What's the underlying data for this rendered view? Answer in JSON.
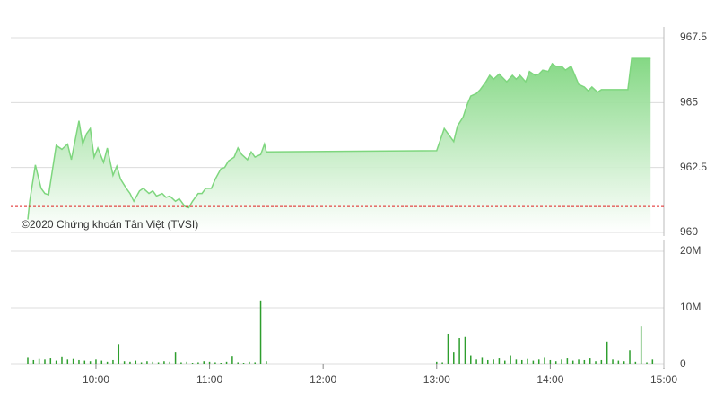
{
  "chart_data": [
    {
      "type": "area",
      "color": "#7ed67e",
      "reference": 961,
      "reference_color": "#e02020",
      "annotation": "©2020 Chứng khoán Tân Việt (TVSI)",
      "xlim": [
        "9:15",
        "15:00"
      ],
      "x": [
        "9:24",
        "9:25",
        "9:28",
        "9:31",
        "9:33",
        "9:35",
        "9:39",
        "9:42",
        "9:45",
        "9:47",
        "9:51",
        "9:53",
        "9:55",
        "9:57",
        "9:59",
        "10:01",
        "10:04",
        "10:06",
        "10:09",
        "10:11",
        "10:13",
        "10:16",
        "10:18",
        "10:20",
        "10:23",
        "10:25",
        "10:28",
        "10:30",
        "10:32",
        "10:35",
        "10:37",
        "10:39",
        "10:42",
        "10:44",
        "10:47",
        "10:49",
        "10:51",
        "10:54",
        "10:56",
        "10:58",
        "11:01",
        "11:03",
        "11:06",
        "11:08",
        "11:10",
        "11:13",
        "11:15",
        "11:17",
        "11:20",
        "11:22",
        "11:24",
        "11:27",
        "11:29",
        "11:30",
        "13:00",
        "13:04",
        "13:06",
        "13:09",
        "13:11",
        "13:14",
        "13:16",
        "13:18",
        "13:21",
        "13:23",
        "13:26",
        "13:28",
        "13:30",
        "13:33",
        "13:35",
        "13:37",
        "13:40",
        "13:42",
        "13:44",
        "13:47",
        "13:49",
        "13:52",
        "13:54",
        "13:56",
        "13:59",
        "14:01",
        "14:03",
        "14:06",
        "14:08",
        "14:11",
        "14:13",
        "14:15",
        "14:18",
        "14:20",
        "14:22",
        "14:25",
        "14:27",
        "14:29",
        "14:41",
        "14:43",
        "14:53"
      ],
      "values": [
        960.5,
        961.2,
        962.6,
        961.7,
        961.5,
        961.45,
        963.35,
        963.2,
        963.4,
        962.8,
        964.3,
        963.4,
        963.8,
        964.0,
        962.9,
        963.25,
        962.7,
        963.25,
        962.2,
        962.55,
        962.05,
        961.7,
        961.5,
        961.2,
        961.6,
        961.7,
        961.5,
        961.6,
        961.4,
        961.5,
        961.35,
        961.4,
        961.2,
        961.3,
        961.0,
        960.95,
        961.2,
        961.5,
        961.5,
        961.7,
        961.7,
        962.05,
        962.45,
        962.5,
        962.75,
        962.9,
        963.25,
        963.0,
        962.8,
        963.1,
        962.9,
        963.0,
        963.4,
        963.1,
        963.15,
        964.0,
        963.8,
        963.5,
        964.1,
        964.45,
        964.9,
        965.25,
        965.35,
        965.5,
        965.8,
        966.05,
        965.9,
        966.1,
        965.95,
        965.8,
        966.05,
        965.9,
        966.05,
        965.8,
        966.2,
        966.05,
        966.1,
        966.25,
        966.2,
        966.5,
        966.4,
        966.4,
        966.25,
        966.4,
        966.05,
        965.7,
        965.6,
        965.45,
        965.6,
        965.4,
        965.5,
        965.5,
        965.5,
        966.7,
        966.7
      ],
      "ylim": [
        960,
        967.5
      ],
      "yticks": [
        960,
        962.5,
        965,
        967.5
      ],
      "grid": true
    },
    {
      "type": "bar",
      "color": "#2e9e2e",
      "xlim": [
        "9:15",
        "15:00"
      ],
      "xticks": [
        "10:00",
        "11:00",
        "12:00",
        "13:00",
        "14:00",
        "15:00"
      ],
      "x": [
        "9:24",
        "9:27",
        "9:30",
        "9:33",
        "9:36",
        "9:39",
        "9:42",
        "9:45",
        "9:48",
        "9:51",
        "9:54",
        "9:57",
        "10:00",
        "10:03",
        "10:06",
        "10:09",
        "10:12",
        "10:15",
        "10:18",
        "10:21",
        "10:24",
        "10:27",
        "10:30",
        "10:33",
        "10:36",
        "10:39",
        "10:42",
        "10:45",
        "10:48",
        "10:51",
        "10:54",
        "10:57",
        "11:00",
        "11:03",
        "11:06",
        "11:09",
        "11:12",
        "11:15",
        "11:18",
        "11:21",
        "11:24",
        "11:27",
        "11:30",
        "13:00",
        "13:03",
        "13:06",
        "13:09",
        "13:12",
        "13:15",
        "13:18",
        "13:21",
        "13:24",
        "13:27",
        "13:30",
        "13:33",
        "13:36",
        "13:39",
        "13:42",
        "13:45",
        "13:48",
        "13:51",
        "13:54",
        "13:57",
        "14:00",
        "14:03",
        "14:06",
        "14:09",
        "14:12",
        "14:15",
        "14:18",
        "14:21",
        "14:24",
        "14:27",
        "14:30",
        "14:33",
        "14:36",
        "14:39",
        "14:42",
        "14:45",
        "14:48",
        "14:51",
        "14:54"
      ],
      "values": [
        1200000,
        800000,
        1000000,
        900000,
        1100000,
        700000,
        1300000,
        900000,
        1000000,
        800000,
        700000,
        600000,
        900000,
        700000,
        500000,
        800000,
        3600000,
        600000,
        500000,
        700000,
        400000,
        600000,
        500000,
        400000,
        600000,
        500000,
        2200000,
        400000,
        500000,
        300000,
        400000,
        600000,
        500000,
        400000,
        300000,
        500000,
        1400000,
        400000,
        300000,
        500000,
        400000,
        11300000,
        600000,
        500000,
        400000,
        5400000,
        2200000,
        4600000,
        4800000,
        1500000,
        900000,
        1200000,
        800000,
        900000,
        1100000,
        700000,
        1500000,
        900000,
        800000,
        1000000,
        700000,
        900000,
        1200000,
        800000,
        600000,
        900000,
        1100000,
        700000,
        900000,
        800000,
        1100000,
        600000,
        800000,
        4000000,
        900000,
        700000,
        600000,
        2500000,
        500000,
        6800000,
        400000,
        900000
      ],
      "ylim": [
        0,
        20000000
      ],
      "yticks": [
        {
          "value": 0,
          "label": "0"
        },
        {
          "value": 10000000,
          "label": "10M"
        },
        {
          "value": 20000000,
          "label": "20M"
        }
      ],
      "grid": true
    }
  ]
}
